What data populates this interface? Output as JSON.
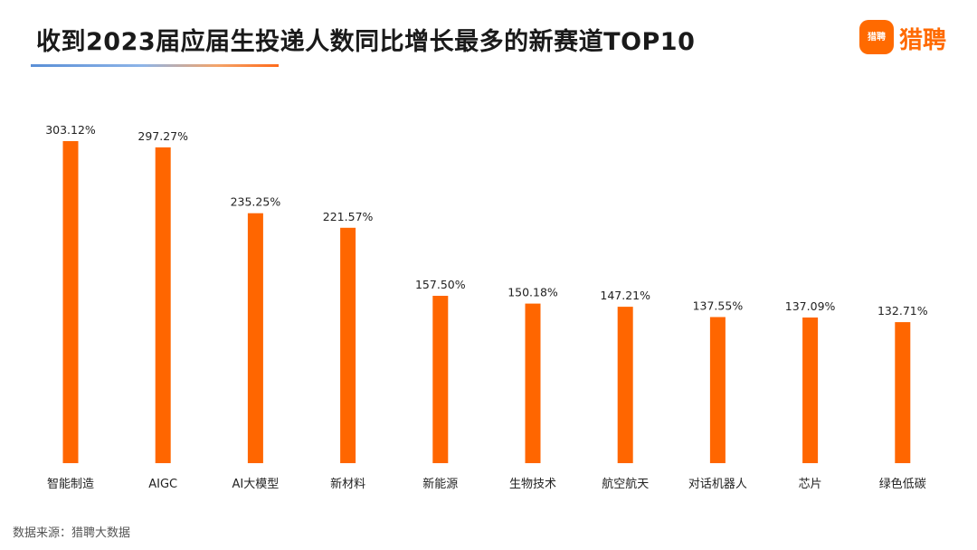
{
  "header": {
    "title": "收到2023届应届生投递人数同比增长最多的新赛道TOP10"
  },
  "logo": {
    "mark_text": "猎聘",
    "word": "猎聘"
  },
  "footer": {
    "note": "数据来源：猎聘大数据"
  },
  "colors": {
    "bar": "#ff6600",
    "accent": "#ff6a00"
  },
  "chart_data": {
    "type": "bar",
    "title": "收到2023届应届生投递人数同比增长最多的新赛道TOP10",
    "categories": [
      "智能制造",
      "AIGC",
      "AI大模型",
      "新材料",
      "新能源",
      "生物技术",
      "航空航天",
      "对话机器人",
      "芯片",
      "绿色低碳"
    ],
    "values": [
      303.12,
      297.27,
      235.25,
      221.57,
      157.5,
      150.18,
      147.21,
      137.55,
      137.09,
      132.71
    ],
    "data_labels": [
      "303.12%",
      "297.27%",
      "235.25%",
      "221.57%",
      "157.50%",
      "150.18%",
      "147.21%",
      "137.55%",
      "137.09%",
      "132.71%"
    ],
    "unit": "%",
    "ylim": [
      0,
      310
    ],
    "grid": false,
    "legend": "none"
  }
}
